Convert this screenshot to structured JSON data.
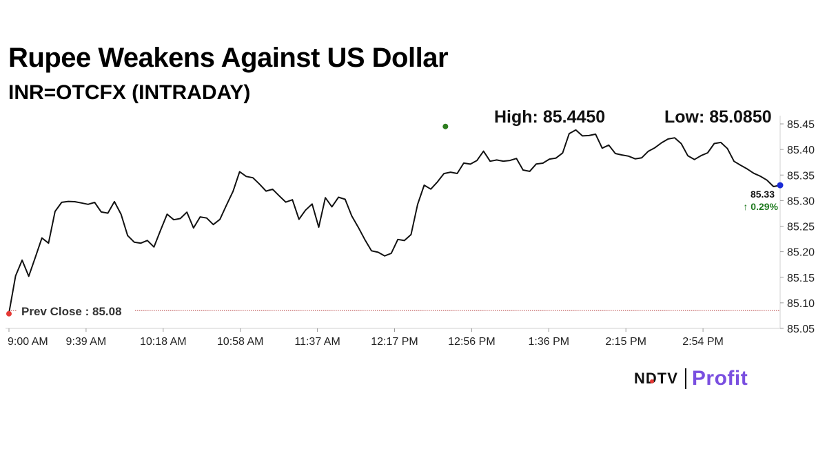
{
  "header": {
    "title": "Rupee Weakens Against US Dollar",
    "subtitle": "INR=OTCFX (INTRADAY)",
    "high_label": "High: 85.4450",
    "low_label": "Low: 85.0850"
  },
  "chart_data": {
    "type": "line",
    "ylim": [
      85.05,
      85.45
    ],
    "yticks": [
      "85.45",
      "85.40",
      "85.35",
      "85.30",
      "85.25",
      "85.20",
      "85.15",
      "85.10",
      "85.05"
    ],
    "xticks": [
      "9:00 AM",
      "9:39 AM",
      "10:18 AM",
      "10:58 AM",
      "11:37 AM",
      "12:17 PM",
      "12:56 PM",
      "1:36 PM",
      "2:15 PM",
      "2:54 PM"
    ],
    "x_range": [
      0,
      400
    ],
    "grid": false,
    "series": [
      {
        "values": [
          85.08,
          85.15,
          85.18,
          85.15,
          85.19,
          85.23,
          85.22,
          85.28,
          85.295,
          85.295,
          85.295,
          85.295,
          85.295,
          85.3,
          85.28,
          85.275,
          85.295,
          85.27,
          85.23,
          85.22,
          85.22,
          85.225,
          85.21,
          85.24,
          85.27,
          85.26,
          85.265,
          85.28,
          85.25,
          85.27,
          85.265,
          85.25,
          85.26,
          85.29,
          85.32,
          85.36,
          85.35,
          85.345,
          85.33,
          85.315,
          85.32,
          85.31,
          85.3,
          85.305,
          85.265,
          85.28,
          85.29,
          85.245,
          85.305,
          85.29,
          85.31,
          85.305,
          85.27,
          85.245,
          85.22,
          85.2,
          85.2,
          85.195,
          85.2,
          85.225,
          85.22,
          85.23,
          85.29,
          85.33,
          85.325,
          85.34,
          85.355,
          85.355,
          85.35,
          85.37,
          85.37,
          85.38,
          85.4,
          85.38,
          85.38,
          85.375,
          85.375,
          85.38,
          85.36,
          85.36,
          85.375,
          85.375,
          85.38,
          85.38,
          85.39,
          85.43,
          85.44,
          85.43,
          85.43,
          85.43,
          85.4,
          85.405,
          85.39,
          85.39,
          85.39,
          85.385,
          85.385,
          85.395,
          85.4,
          85.41,
          85.42,
          85.425,
          85.415,
          85.39,
          85.38,
          85.385,
          85.39,
          85.41,
          85.415,
          85.405,
          85.38,
          85.37,
          85.36,
          85.35,
          85.345,
          85.34,
          85.33,
          85.33
        ]
      }
    ],
    "prev_close_label": "Prev Close : 85.08",
    "prev_close_value": 85.085,
    "high_value": 85.445,
    "high_time": 226.4,
    "last_value": "85.33",
    "last_change": "0.29%",
    "last_change_arrow": "↑",
    "colors": {
      "line": "#111111",
      "prev_close": "#b33a3a",
      "start_dot": "#e53935",
      "high_dot": "#2e7d1f",
      "last_dot": "#1a2bd6",
      "change_text": "#1f7a1f",
      "axis": "#d0d0d0"
    }
  },
  "logo": {
    "ndtv": "NDTV",
    "profit": "Profit"
  }
}
